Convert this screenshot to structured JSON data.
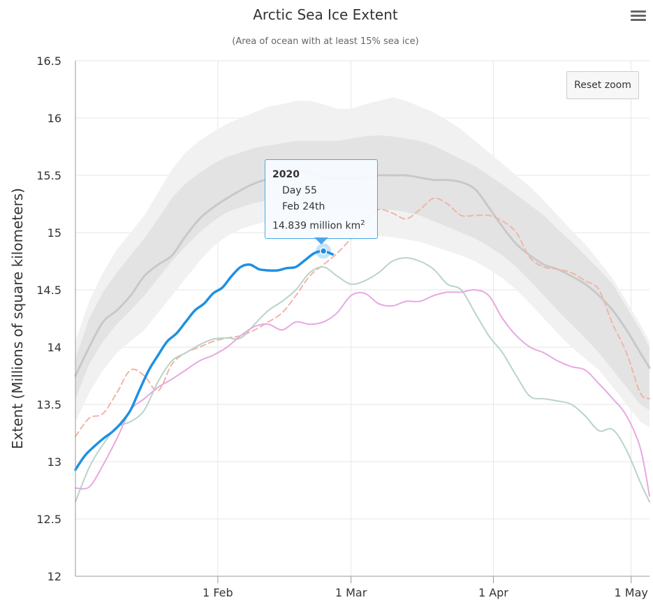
{
  "chart_data": {
    "type": "line",
    "title": "Arctic Sea Ice Extent",
    "subtitle": "(Area of ocean with at least 15% sea ice)",
    "ylabel": "Extent (Millions of square kilometers)",
    "xlabel": "",
    "ylim": [
      12,
      16.5
    ],
    "xlim": [
      1,
      126
    ],
    "yticks": [
      12,
      12.5,
      13,
      13.5,
      14,
      14.5,
      15,
      15.5,
      16,
      16.5
    ],
    "xticks": [
      {
        "day": 32,
        "label": "1 Feb"
      },
      {
        "day": 61,
        "label": "1 Mar"
      },
      {
        "day": 92,
        "label": "1 Apr"
      },
      {
        "day": 122,
        "label": "1 May"
      }
    ],
    "grid": true,
    "colors": {
      "band_outer": "#f1f1f1",
      "band_inner": "#e3e3e3",
      "median": "#c8c8c8",
      "current": "#1e90e3",
      "dashed": "#f2b4a8",
      "green": "#b8d4c8",
      "pink": "#e8a8e0",
      "grid": "#e6e6e6"
    },
    "x_days": [
      1,
      4,
      7,
      10,
      13,
      16,
      19,
      22,
      25,
      28,
      31,
      34,
      37,
      40,
      43,
      46,
      49,
      52,
      55,
      58,
      61,
      64,
      67,
      70,
      73,
      76,
      79,
      82,
      85,
      88,
      91,
      94,
      97,
      100,
      103,
      106,
      109,
      112,
      115,
      118,
      121,
      124,
      126
    ],
    "band_outer": {
      "upper": [
        14.05,
        14.4,
        14.65,
        14.85,
        15.0,
        15.15,
        15.35,
        15.55,
        15.7,
        15.8,
        15.88,
        15.95,
        16.0,
        16.05,
        16.1,
        16.12,
        16.15,
        16.15,
        16.12,
        16.08,
        16.08,
        16.12,
        16.15,
        16.18,
        16.15,
        16.1,
        16.05,
        15.98,
        15.9,
        15.8,
        15.7,
        15.6,
        15.5,
        15.4,
        15.28,
        15.15,
        15.02,
        14.9,
        14.75,
        14.6,
        14.4,
        14.2,
        14.05
      ],
      "lower": [
        13.35,
        13.6,
        13.8,
        13.95,
        14.05,
        14.15,
        14.3,
        14.45,
        14.6,
        14.75,
        14.88,
        14.97,
        15.03,
        15.07,
        15.1,
        15.1,
        15.08,
        15.06,
        15.03,
        15.0,
        14.98,
        14.97,
        14.97,
        14.96,
        14.94,
        14.92,
        14.88,
        14.84,
        14.8,
        14.75,
        14.68,
        14.6,
        14.5,
        14.38,
        14.25,
        14.12,
        14.0,
        13.9,
        13.8,
        13.65,
        13.5,
        13.35,
        13.3
      ]
    },
    "band_inner": {
      "upper": [
        13.9,
        14.25,
        14.48,
        14.65,
        14.8,
        14.95,
        15.12,
        15.3,
        15.43,
        15.52,
        15.6,
        15.66,
        15.7,
        15.74,
        15.76,
        15.78,
        15.8,
        15.8,
        15.8,
        15.8,
        15.82,
        15.84,
        15.85,
        15.84,
        15.82,
        15.8,
        15.76,
        15.7,
        15.64,
        15.58,
        15.5,
        15.42,
        15.33,
        15.24,
        15.15,
        15.03,
        14.92,
        14.8,
        14.68,
        14.55,
        14.35,
        14.15,
        14.0
      ],
      "lower": [
        13.55,
        13.85,
        14.05,
        14.2,
        14.32,
        14.45,
        14.6,
        14.75,
        14.88,
        15.0,
        15.1,
        15.18,
        15.22,
        15.26,
        15.28,
        15.28,
        15.27,
        15.25,
        15.22,
        15.2,
        15.2,
        15.2,
        15.2,
        15.2,
        15.18,
        15.15,
        15.1,
        15.05,
        15.0,
        14.95,
        14.88,
        14.8,
        14.7,
        14.58,
        14.45,
        14.32,
        14.2,
        14.08,
        13.95,
        13.8,
        13.65,
        13.5,
        13.45
      ]
    },
    "series": [
      {
        "name": "median",
        "values": [
          13.75,
          14.0,
          14.22,
          14.32,
          14.45,
          14.62,
          14.72,
          14.8,
          14.97,
          15.12,
          15.22,
          15.3,
          15.37,
          15.43,
          15.47,
          15.52,
          15.55,
          15.52,
          15.48,
          15.47,
          15.47,
          15.48,
          15.5,
          15.5,
          15.5,
          15.48,
          15.46,
          15.46,
          15.44,
          15.38,
          15.22,
          15.05,
          14.9,
          14.8,
          14.72,
          14.68,
          14.62,
          14.55,
          14.45,
          14.32,
          14.15,
          13.95,
          13.82
        ]
      },
      {
        "name": "dashed",
        "values": [
          13.22,
          13.38,
          13.42,
          13.6,
          13.8,
          13.75,
          13.62,
          13.85,
          13.95,
          14.0,
          14.05,
          14.08,
          14.1,
          14.15,
          14.22,
          14.3,
          14.45,
          14.62,
          14.72,
          14.82,
          14.95,
          15.1,
          15.2,
          15.17,
          15.12,
          15.2,
          15.3,
          15.25,
          15.15,
          15.15,
          15.15,
          15.1,
          15.0,
          14.78,
          14.7,
          14.68,
          14.65,
          14.58,
          14.5,
          14.2,
          13.95,
          13.6,
          13.55
        ]
      },
      {
        "name": "green",
        "values": [
          12.65,
          12.95,
          13.15,
          13.3,
          13.35,
          13.45,
          13.7,
          13.88,
          13.95,
          14.02,
          14.07,
          14.08,
          14.08,
          14.2,
          14.32,
          14.4,
          14.5,
          14.65,
          14.7,
          14.62,
          14.55,
          14.58,
          14.65,
          14.75,
          14.78,
          14.75,
          14.68,
          14.55,
          14.5,
          14.3,
          14.1,
          13.95,
          13.75,
          13.57,
          13.55,
          13.53,
          13.5,
          13.4,
          13.27,
          13.28,
          13.1,
          12.82,
          12.65
        ]
      },
      {
        "name": "pink",
        "values": [
          12.77,
          12.78,
          12.97,
          13.2,
          13.45,
          13.55,
          13.65,
          13.72,
          13.8,
          13.88,
          13.93,
          14.0,
          14.1,
          14.18,
          14.2,
          14.15,
          14.22,
          14.2,
          14.22,
          14.3,
          14.45,
          14.47,
          14.38,
          14.36,
          14.4,
          14.4,
          14.45,
          14.48,
          14.48,
          14.5,
          14.45,
          14.25,
          14.1,
          14.0,
          13.95,
          13.88,
          13.83,
          13.8,
          13.68,
          13.55,
          13.4,
          13.12,
          12.7
        ]
      },
      {
        "name": "2020",
        "x_days": [
          1,
          3,
          5,
          7,
          9,
          11,
          13,
          15,
          17,
          19,
          21,
          23,
          25,
          27,
          29,
          31,
          33,
          35,
          37,
          39,
          41,
          43,
          45,
          47,
          49,
          51,
          53,
          55,
          57
        ],
        "values": [
          12.93,
          13.05,
          13.13,
          13.2,
          13.26,
          13.34,
          13.45,
          13.63,
          13.8,
          13.93,
          14.05,
          14.12,
          14.22,
          14.32,
          14.38,
          14.47,
          14.52,
          14.62,
          14.7,
          14.72,
          14.68,
          14.67,
          14.67,
          14.69,
          14.7,
          14.76,
          14.82,
          14.839,
          14.81
        ]
      }
    ],
    "tooltip": {
      "series": "2020",
      "day_label": "Day 55",
      "date_label": "Feb 24th",
      "value_text": "14.839 million km",
      "value_sup": "2",
      "x_day": 55,
      "y_value": 14.839
    }
  },
  "controls": {
    "reset_zoom_label": "Reset zoom",
    "menu_icon": "hamburger-menu-icon"
  }
}
